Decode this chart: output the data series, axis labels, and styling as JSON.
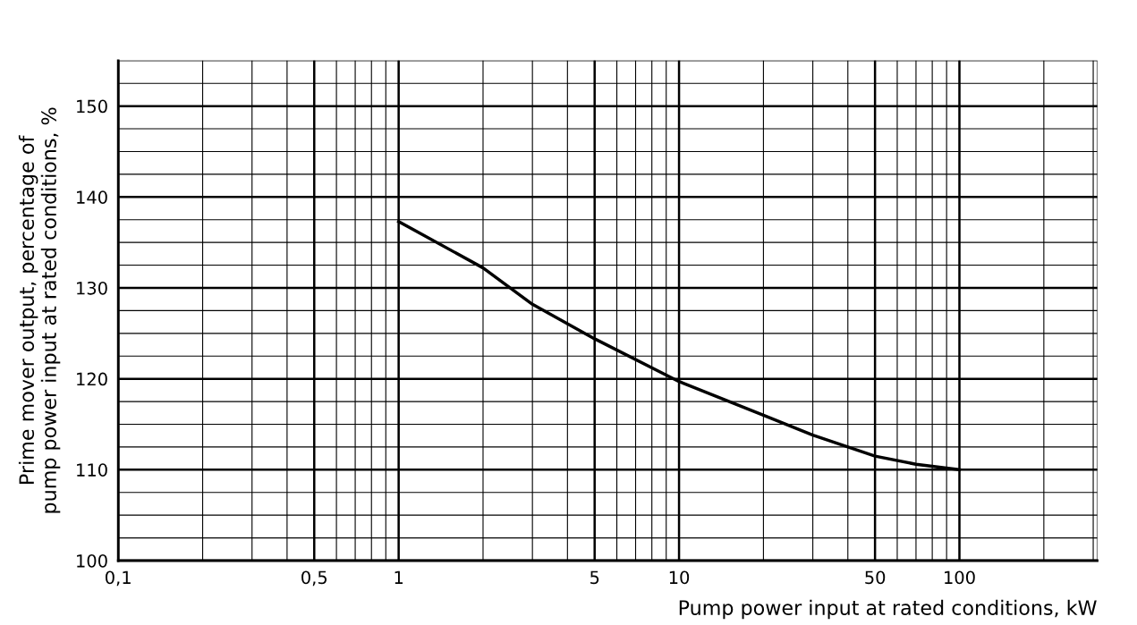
{
  "chart_data": {
    "type": "line",
    "xlabel": "Pump power input at rated conditions, kW",
    "ylabel": "Prime mover output, percentage of\npump power input at rated conditions, %",
    "log": "x",
    "series": [
      {
        "color": "#000000",
        "x": [
          1,
          2,
          3,
          5,
          10,
          20,
          30,
          50,
          70,
          100
        ],
        "values": [
          137.3,
          132.2,
          128.2,
          124.4,
          119.7,
          116.0,
          113.8,
          111.5,
          110.6,
          110.0
        ]
      }
    ],
    "xlim": [
      0.1,
      310
    ],
    "xticks": [
      {
        "value": 0.1,
        "label": "0,1"
      },
      {
        "value": 0.5,
        "label": "0,5"
      },
      1,
      5,
      10,
      50,
      100
    ],
    "ylim": [
      100,
      155
    ],
    "yticks": [
      100,
      110,
      120,
      130,
      140,
      150
    ],
    "grid": true,
    "marker": "none",
    "line_style": "solid"
  }
}
